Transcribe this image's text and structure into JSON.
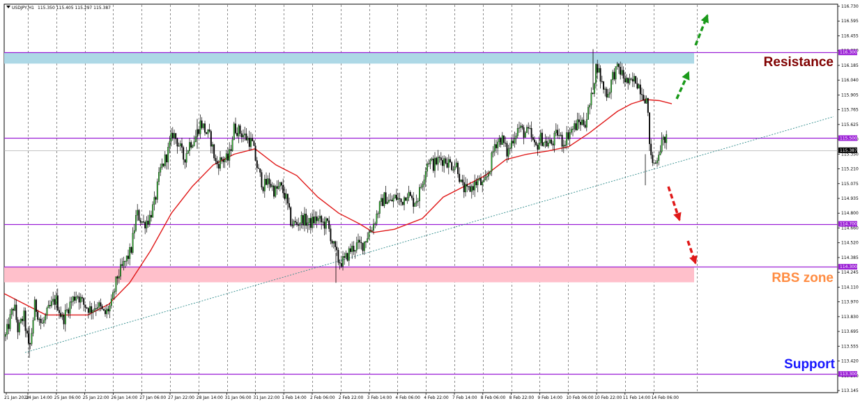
{
  "header": {
    "symbol": "USDJPY,H1",
    "ohlc": "115.350 115.405 115.297 115.387",
    "arrow_icon": "triangle-down-icon"
  },
  "chart_data": {
    "type": "candlestick",
    "title": "USDJPY,H1",
    "ylim": [
      113.145,
      116.73
    ],
    "y_ticks": [
      "116.730",
      "116.595",
      "116.455",
      "116.320",
      "116.185",
      "116.040",
      "115.905",
      "115.765",
      "115.625",
      "115.490",
      "115.350",
      "115.210",
      "115.075",
      "114.935",
      "114.800",
      "114.660",
      "114.520",
      "114.385",
      "114.245",
      "114.110",
      "113.970",
      "113.830",
      "113.695",
      "113.555",
      "113.420",
      "113.280",
      "113.145"
    ],
    "x_ticks": [
      "21 Jan 2022",
      "24 Jan 14:00",
      "25 Jan 06:00",
      "25 Jan 22:00",
      "26 Jan 14:00",
      "27 Jan 06:00",
      "27 Jan 22:00",
      "28 Jan 14:00",
      "31 Jan 06:00",
      "31 Jan 22:00",
      "1 Feb 14:00",
      "2 Feb 06:00",
      "2 Feb 22:00",
      "3 Feb 14:00",
      "4 Feb 06:00",
      "4 Feb 22:00",
      "7 Feb 14:00",
      "8 Feb 06:00",
      "8 Feb 22:00",
      "9 Feb 14:00",
      "10 Feb 06:00",
      "10 Feb 22:00",
      "11 Feb 14:00",
      "14 Feb 06:00"
    ],
    "price_path": [
      [
        0,
        113.65
      ],
      [
        12,
        113.95
      ],
      [
        18,
        113.7
      ],
      [
        26,
        113.85
      ],
      [
        34,
        113.5
      ],
      [
        42,
        113.95
      ],
      [
        52,
        113.75
      ],
      [
        62,
        113.9
      ],
      [
        72,
        114.0
      ],
      [
        82,
        113.8
      ],
      [
        92,
        113.95
      ],
      [
        102,
        114.05
      ],
      [
        112,
        113.95
      ],
      [
        122,
        113.9
      ],
      [
        132,
        113.95
      ],
      [
        142,
        113.85
      ],
      [
        152,
        113.95
      ],
      [
        160,
        114.2
      ],
      [
        172,
        114.35
      ],
      [
        180,
        114.45
      ],
      [
        188,
        114.8
      ],
      [
        198,
        114.7
      ],
      [
        206,
        114.75
      ],
      [
        214,
        114.9
      ],
      [
        222,
        115.2
      ],
      [
        232,
        115.35
      ],
      [
        240,
        115.55
      ],
      [
        248,
        115.45
      ],
      [
        256,
        115.3
      ],
      [
        264,
        115.45
      ],
      [
        272,
        115.5
      ],
      [
        280,
        115.65
      ],
      [
        288,
        115.55
      ],
      [
        294,
        115.5
      ],
      [
        302,
        115.25
      ],
      [
        310,
        115.3
      ],
      [
        320,
        115.3
      ],
      [
        328,
        115.6
      ],
      [
        338,
        115.55
      ],
      [
        346,
        115.5
      ],
      [
        354,
        115.45
      ],
      [
        362,
        115.2
      ],
      [
        370,
        115.05
      ],
      [
        378,
        115.1
      ],
      [
        386,
        115.0
      ],
      [
        394,
        115.05
      ],
      [
        402,
        114.95
      ],
      [
        410,
        114.7
      ],
      [
        418,
        114.7
      ],
      [
        426,
        114.75
      ],
      [
        436,
        114.7
      ],
      [
        446,
        114.75
      ],
      [
        456,
        114.7
      ],
      [
        462,
        114.7
      ],
      [
        470,
        114.5
      ],
      [
        478,
        114.35
      ],
      [
        486,
        114.35
      ],
      [
        494,
        114.45
      ],
      [
        504,
        114.5
      ],
      [
        512,
        114.5
      ],
      [
        520,
        114.6
      ],
      [
        528,
        114.7
      ],
      [
        536,
        114.85
      ],
      [
        544,
        114.95
      ],
      [
        552,
        114.9
      ],
      [
        560,
        114.95
      ],
      [
        568,
        114.9
      ],
      [
        576,
        115.0
      ],
      [
        584,
        114.9
      ],
      [
        592,
        114.95
      ],
      [
        600,
        115.15
      ],
      [
        606,
        115.3
      ],
      [
        614,
        115.25
      ],
      [
        622,
        115.3
      ],
      [
        630,
        115.3
      ],
      [
        640,
        115.25
      ],
      [
        648,
        115.25
      ],
      [
        654,
        115.05
      ],
      [
        662,
        115.0
      ],
      [
        670,
        115.05
      ],
      [
        678,
        115.1
      ],
      [
        686,
        115.05
      ],
      [
        694,
        115.2
      ],
      [
        702,
        115.45
      ],
      [
        712,
        115.5
      ],
      [
        720,
        115.35
      ],
      [
        728,
        115.5
      ],
      [
        736,
        115.6
      ],
      [
        744,
        115.55
      ],
      [
        752,
        115.55
      ],
      [
        760,
        115.4
      ],
      [
        768,
        115.5
      ],
      [
        776,
        115.45
      ],
      [
        784,
        115.45
      ],
      [
        792,
        115.55
      ],
      [
        800,
        115.45
      ],
      [
        808,
        115.55
      ],
      [
        816,
        115.6
      ],
      [
        824,
        115.65
      ],
      [
        832,
        115.65
      ],
      [
        840,
        115.85
      ],
      [
        848,
        116.2
      ],
      [
        856,
        116.0
      ],
      [
        864,
        115.9
      ],
      [
        872,
        116.1
      ],
      [
        880,
        116.15
      ],
      [
        888,
        116.05
      ],
      [
        896,
        116.0
      ],
      [
        904,
        116.05
      ],
      [
        912,
        115.95
      ],
      [
        920,
        115.85
      ],
      [
        926,
        115.3
      ],
      [
        932,
        115.25
      ],
      [
        938,
        115.4
      ],
      [
        946,
        115.5
      ],
      [
        952,
        115.45
      ],
      [
        958,
        115.38
      ]
    ],
    "moving_average": [
      [
        0,
        114.05
      ],
      [
        30,
        113.95
      ],
      [
        60,
        113.85
      ],
      [
        90,
        113.85
      ],
      [
        120,
        113.85
      ],
      [
        150,
        113.95
      ],
      [
        180,
        114.15
      ],
      [
        210,
        114.45
      ],
      [
        240,
        114.8
      ],
      [
        270,
        115.05
      ],
      [
        300,
        115.25
      ],
      [
        330,
        115.35
      ],
      [
        360,
        115.4
      ],
      [
        390,
        115.25
      ],
      [
        420,
        115.15
      ],
      [
        450,
        114.95
      ],
      [
        480,
        114.8
      ],
      [
        510,
        114.7
      ],
      [
        530,
        114.62
      ],
      [
        560,
        114.65
      ],
      [
        600,
        114.75
      ],
      [
        630,
        114.95
      ],
      [
        660,
        115.05
      ],
      [
        690,
        115.15
      ],
      [
        720,
        115.3
      ],
      [
        750,
        115.35
      ],
      [
        780,
        115.38
      ],
      [
        810,
        115.42
      ],
      [
        840,
        115.55
      ],
      [
        860,
        115.65
      ],
      [
        880,
        115.75
      ],
      [
        900,
        115.82
      ],
      [
        920,
        115.86
      ],
      [
        940,
        115.85
      ],
      [
        958,
        115.82
      ]
    ],
    "levels": [
      {
        "name": "resistance-line",
        "price": 116.3,
        "label": "116.300"
      },
      {
        "name": "level-115-500",
        "price": 115.5,
        "label": "115.500"
      },
      {
        "name": "level-114-700",
        "price": 114.7,
        "label": "114.700"
      },
      {
        "name": "rbs-line",
        "price": 114.3,
        "label": "114.300"
      },
      {
        "name": "support-line",
        "price": 113.3,
        "label": "113.300"
      }
    ],
    "current_price": {
      "price": 115.387,
      "label": "115.387"
    },
    "zones": [
      {
        "name": "resistance-zone",
        "top": 116.3,
        "bottom": 116.195,
        "color": "#add8e6"
      },
      {
        "name": "rbs-zone",
        "top": 114.3,
        "bottom": 114.155,
        "color": "#ffc0cb"
      }
    ],
    "trendline": {
      "start": [
        36,
        113.5
      ],
      "end": [
        1196,
        115.7
      ]
    },
    "annotations": [
      {
        "name": "resistance-label",
        "text": "Resistance",
        "color": "#800000"
      },
      {
        "name": "rbs-zone-label",
        "text": "RBS zone",
        "color": "#ff8c42"
      },
      {
        "name": "support-label",
        "text": "Support",
        "color": "#1515ff"
      }
    ],
    "arrows": {
      "green": "#1a9a1a",
      "red": "#e01818"
    },
    "grid": true
  }
}
